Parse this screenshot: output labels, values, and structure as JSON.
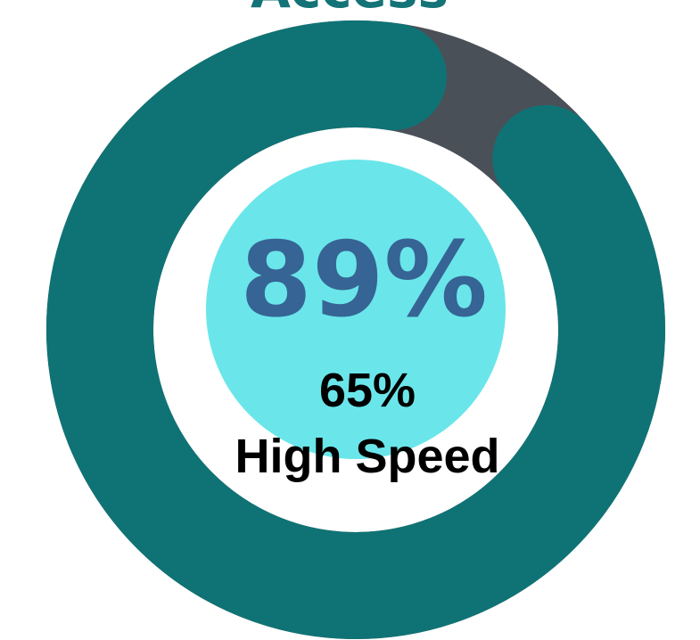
{
  "title": "Access",
  "colors": {
    "ring_track": "#4a5058",
    "ring_fill": "#0f7375",
    "inner_circle": "#6ae6ea",
    "background": "#ffffff",
    "primary_text": "#366494",
    "secondary_text": "#000000"
  },
  "chart_data": {
    "type": "pie",
    "subtype": "donut-gauge",
    "title": "Access",
    "series": [
      {
        "name": "",
        "value": 89,
        "unit": "%"
      },
      {
        "name": "High Speed",
        "value": 65,
        "unit": "%"
      }
    ]
  },
  "center": {
    "primary_value": "89%",
    "secondary_value": "65%",
    "secondary_label": "High Speed"
  }
}
